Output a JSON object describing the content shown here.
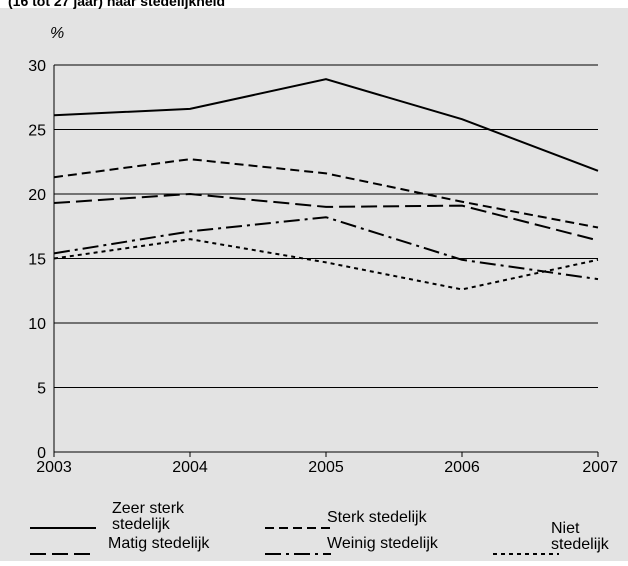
{
  "caption_partial": "(16 tot 27 jaar) naar stedelijkheid",
  "chart_data": {
    "type": "line",
    "ylabel": "%",
    "xlabel": "",
    "title": "",
    "x": [
      "2003",
      "2004",
      "2005",
      "2006",
      "2007"
    ],
    "ylim": [
      0,
      30
    ],
    "yticks": [
      "0",
      "5",
      "10",
      "15",
      "20",
      "25",
      "30"
    ],
    "grid": true,
    "legend_position": "bottom",
    "series": [
      {
        "name": "Zeer sterk stedelijk",
        "dash": "solid",
        "values": [
          26.1,
          26.6,
          28.9,
          25.8,
          21.8
        ]
      },
      {
        "name": "Sterk stedelijk",
        "dash": "dashed",
        "values": [
          21.3,
          22.7,
          21.6,
          19.4,
          17.4
        ]
      },
      {
        "name": "Matig stedelijk",
        "dash": "long-dash",
        "values": [
          19.3,
          20.0,
          19.0,
          19.1,
          16.4
        ]
      },
      {
        "name": "Weinig stedelijk",
        "dash": "dash-dot",
        "values": [
          15.4,
          17.1,
          18.2,
          14.9,
          13.4
        ]
      },
      {
        "name": "Niet stedelijk",
        "dash": "dotted",
        "values": [
          15.0,
          16.5,
          14.7,
          12.6,
          14.9
        ]
      }
    ]
  }
}
